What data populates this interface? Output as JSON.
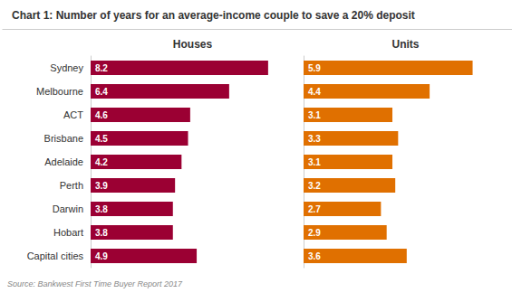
{
  "chart_data": [
    {
      "type": "bar",
      "orientation": "horizontal",
      "title": "Chart 1: Number of years for an average-income couple to save a 20% deposit",
      "subtitle": "Houses",
      "annotations": [
        "Source: Bankwest First Time Buyer Report 2017"
      ],
      "categories": [
        "Sydney",
        "Melbourne",
        "ACT",
        "Brisbane",
        "Adelaide",
        "Perth",
        "Darwin",
        "Hobart",
        "Capital cities"
      ],
      "values": [
        8.2,
        6.4,
        4.6,
        4.5,
        4.2,
        3.9,
        3.8,
        3.8,
        4.9
      ],
      "color": "#9B0033",
      "xlim": [
        0,
        9.0
      ],
      "data_labels": true,
      "tick_labels": "y"
    },
    {
      "type": "bar",
      "orientation": "horizontal",
      "subtitle": "Units",
      "categories": [
        "Sydney",
        "Melbourne",
        "ACT",
        "Brisbane",
        "Adelaide",
        "Perth",
        "Darwin",
        "Hobart",
        "Capital cities"
      ],
      "values": [
        5.9,
        4.4,
        3.1,
        3.3,
        3.1,
        3.2,
        2.7,
        2.9,
        3.6
      ],
      "color": "#E07000",
      "xlim": [
        0,
        6.8
      ],
      "data_labels": true,
      "tick_labels": false
    }
  ]
}
